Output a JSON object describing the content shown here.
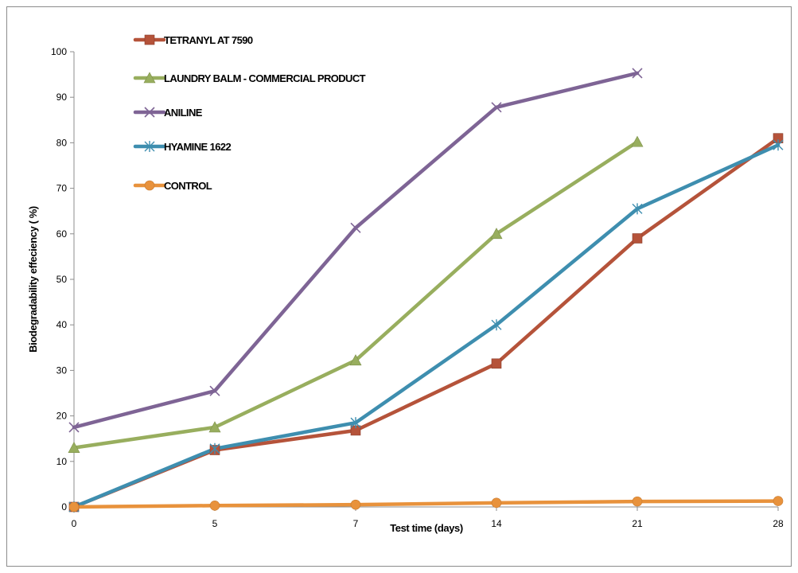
{
  "chart_data": {
    "type": "line",
    "xlabel": "Test time (days)",
    "ylabel": "Biodegradability effeciency ( %)",
    "categories": [
      "0",
      "5",
      "7",
      "14",
      "21",
      "28"
    ],
    "ylim": [
      0,
      100
    ],
    "yticks": [
      0,
      10,
      20,
      30,
      40,
      50,
      60,
      70,
      80,
      90,
      100
    ],
    "grid": false,
    "legend_position": "top-left",
    "series": [
      {
        "name": "TETRANYL AT 7590",
        "color": "#b5533a",
        "marker": "square",
        "values": [
          0,
          12.5,
          16.8,
          31.5,
          59,
          81
        ]
      },
      {
        "name": "LAUNDRY BALM - COMMERCIAL PRODUCT",
        "color": "#98ae5e",
        "marker": "triangle",
        "values": [
          13,
          17.5,
          32.2,
          60,
          80.2,
          null
        ]
      },
      {
        "name": "ANILINE",
        "color": "#7e6495",
        "marker": "x",
        "values": [
          17.5,
          25.5,
          61.3,
          87.8,
          95.3,
          null
        ]
      },
      {
        "name": "HYAMINE 1622",
        "color": "#3e8eaf",
        "marker": "star",
        "values": [
          0,
          12.8,
          18.5,
          40,
          65.5,
          79.5
        ]
      },
      {
        "name": "CONTROL",
        "color": "#e8923c",
        "marker": "circle",
        "values": [
          0,
          0.3,
          0.5,
          0.9,
          1.2,
          1.3
        ]
      }
    ]
  }
}
